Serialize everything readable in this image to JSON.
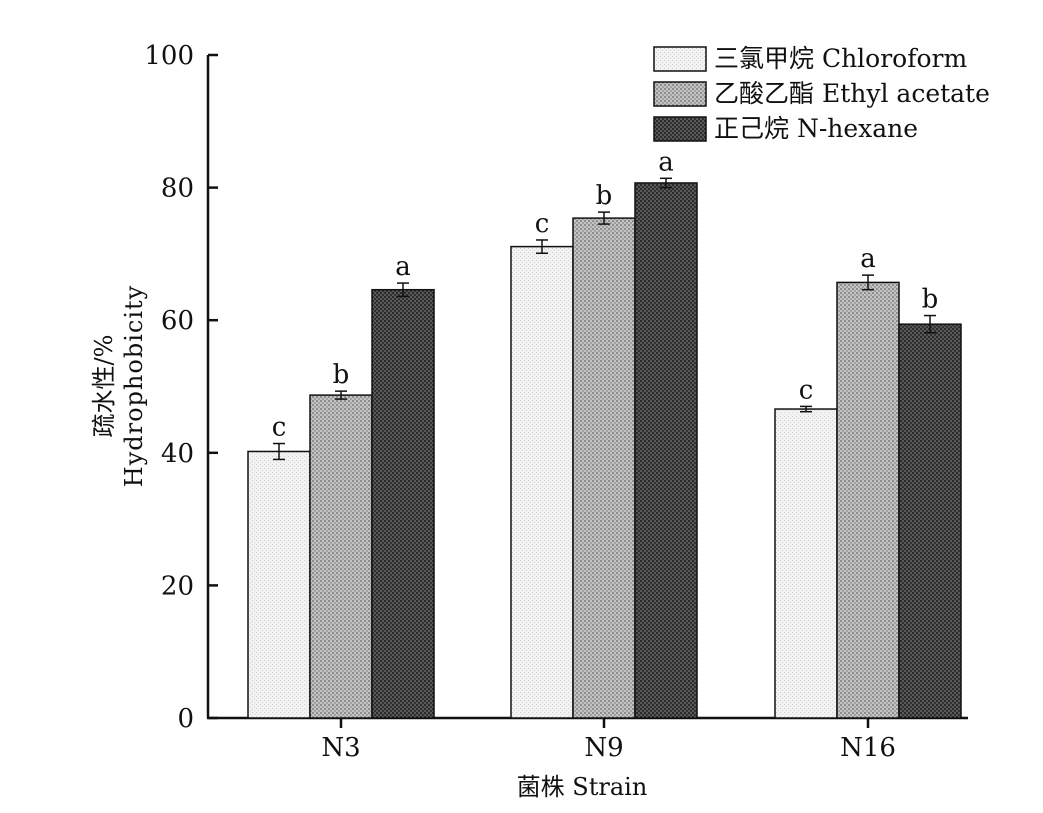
{
  "chart_data": {
    "type": "bar",
    "xlabel": "菌株 Strain",
    "ylabel_cn": "疏水性/%",
    "ylabel_en": "Hydrophobicity",
    "ylim": [
      0,
      100
    ],
    "yticks": [
      0,
      20,
      40,
      60,
      80,
      100
    ],
    "categories": [
      "N3",
      "N9",
      "N16"
    ],
    "legend_position": "top-right",
    "series": [
      {
        "name": "三氯甲烷 Chloroform",
        "pattern": "light",
        "values": [
          40.2,
          71.1,
          46.6
        ],
        "errors": [
          1.2,
          1.0,
          0.4
        ],
        "letters": [
          "c",
          "c",
          "c"
        ]
      },
      {
        "name": "乙酸乙酯 Ethyl acetate",
        "pattern": "medium",
        "values": [
          48.7,
          75.4,
          65.7
        ],
        "errors": [
          0.6,
          0.9,
          1.1
        ],
        "letters": [
          "b",
          "b",
          "a"
        ]
      },
      {
        "name": "正己烷 N-hexane",
        "pattern": "dark",
        "values": [
          64.6,
          80.7,
          59.4
        ],
        "errors": [
          1.0,
          0.7,
          1.3
        ],
        "letters": [
          "a",
          "a",
          "b"
        ]
      }
    ]
  }
}
